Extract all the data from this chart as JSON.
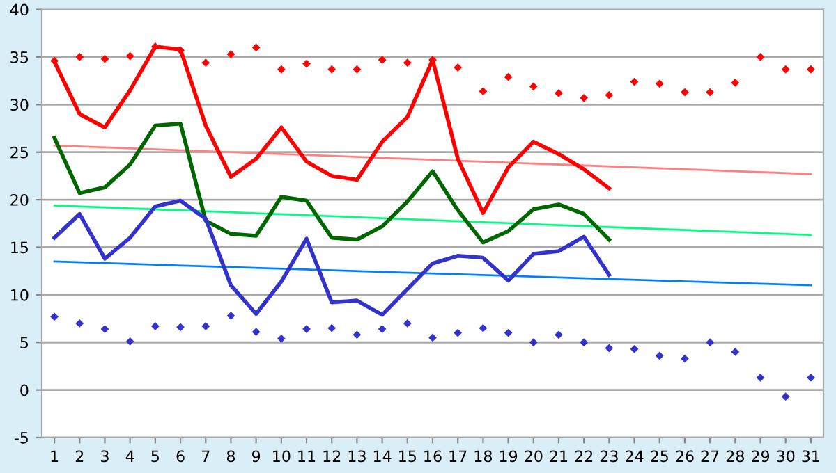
{
  "chart_data": {
    "type": "line",
    "categories": [
      "1",
      "2",
      "3",
      "4",
      "5",
      "6",
      "7",
      "8",
      "9",
      "10",
      "11",
      "12",
      "13",
      "14",
      "15",
      "16",
      "17",
      "18",
      "19",
      "20",
      "21",
      "22",
      "23",
      "24",
      "25",
      "26",
      "27",
      "28",
      "29",
      "30",
      "31"
    ],
    "ylim": [
      -5,
      40
    ],
    "yticks": [
      -5,
      0,
      5,
      10,
      15,
      20,
      25,
      30,
      35,
      40
    ],
    "grid": "y",
    "legend": false,
    "series": [
      {
        "color": "#ff8080",
        "x": [
          "1",
          "31"
        ],
        "values": [
          25.7,
          22.7
        ]
      },
      {
        "color": "#00ff80",
        "x": [
          "1",
          "31"
        ],
        "values": [
          19.4,
          16.3
        ]
      },
      {
        "color": "#0080ff",
        "x": [
          "1",
          "31"
        ],
        "values": [
          13.5,
          11.0
        ]
      },
      {
        "color": "#ff0000",
        "values": [
          34.5,
          29,
          27.6,
          31.5,
          36.1,
          35.8,
          27.8,
          22.4,
          24.3,
          27.6,
          24,
          22.5,
          22.1,
          26.1,
          28.7,
          34.7,
          24.3,
          18.6,
          23.4,
          26.1,
          24.8,
          23.2,
          21.2,
          null,
          null,
          null,
          null,
          null,
          null,
          null,
          null
        ]
      },
      {
        "color": "#006600",
        "values": [
          26.5,
          20.7,
          21.3,
          23.7,
          27.8,
          28,
          17.8,
          16.4,
          16.2,
          20.3,
          19.9,
          16,
          15.8,
          17.2,
          19.8,
          23,
          18.9,
          15.5,
          16.7,
          19,
          19.5,
          18.5,
          15.8,
          null,
          null,
          null,
          null,
          null,
          null,
          null,
          null
        ]
      },
      {
        "color": "#3333cc",
        "values": [
          16,
          18.5,
          13.8,
          16,
          19.3,
          19.9,
          18,
          11,
          8,
          11.4,
          15.9,
          9.2,
          9.4,
          7.9,
          10.6,
          13.3,
          14.1,
          13.9,
          11.5,
          14.3,
          14.6,
          16.1,
          12.1,
          null,
          null,
          null,
          null,
          null,
          null,
          null,
          null
        ]
      },
      {
        "type": "scatter",
        "color": "#ff0000",
        "marker": "diamond",
        "values": [
          34.6,
          35,
          34.8,
          35.1,
          36.1,
          35.7,
          34.4,
          35.3,
          36,
          33.7,
          34.3,
          33.7,
          33.7,
          34.7,
          34.4,
          34.7,
          33.9,
          31.4,
          32.9,
          31.9,
          31.2,
          30.7,
          31,
          32.4,
          32.2,
          31.3,
          31.3,
          32.3,
          35,
          33.7,
          33.7
        ]
      },
      {
        "type": "scatter",
        "color": "#3333cc",
        "marker": "diamond",
        "values": [
          7.7,
          7,
          6.4,
          5.1,
          6.7,
          6.6,
          6.7,
          7.8,
          6.1,
          5.4,
          6.4,
          6.5,
          5.8,
          6.4,
          7,
          5.5,
          6,
          6.5,
          6,
          5,
          5.8,
          5,
          4.4,
          4.3,
          3.6,
          3.3,
          5,
          4,
          1.3,
          -0.7,
          1.3
        ]
      }
    ]
  }
}
